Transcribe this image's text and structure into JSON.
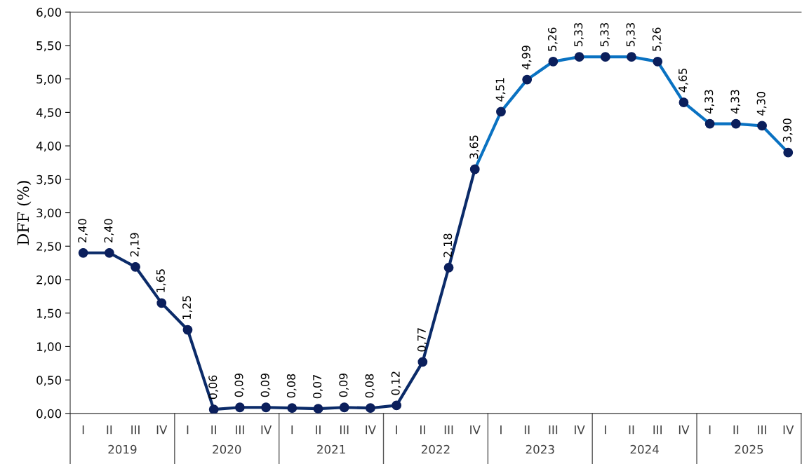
{
  "chart_data": {
    "type": "line",
    "ylabel": "DFF (%)",
    "categories": [
      "I",
      "II",
      "III",
      "IV",
      "I",
      "II",
      "III",
      "IV",
      "I",
      "II",
      "III",
      "IV",
      "I",
      "II",
      "III",
      "IV",
      "I",
      "II",
      "III",
      "IV",
      "I",
      "II",
      "III",
      "IV",
      "I",
      "II",
      "III",
      "IV"
    ],
    "annotations": [
      "2019",
      "2020",
      "2021",
      "2022",
      "2023",
      "2024",
      "2025"
    ],
    "series": [
      {
        "color": "#0b2b69",
        "colors": [
          "#0b1f5c",
          "#0b1f5c",
          "#0b1f5c",
          "#0b1f5c",
          "#0b1f5c",
          "#0b1f5c",
          "#0b1f5c",
          "#0b1f5c",
          "#0b1f5c",
          "#0b1f5c",
          "#0b1f5c",
          "#0b1f5c",
          "#0b1f5c",
          "#0b1f5c",
          "#0b1f5c",
          "#0b1f5c",
          null,
          null,
          null,
          null,
          null,
          null,
          null,
          null,
          null,
          null,
          null,
          null
        ],
        "values": [
          2.4,
          2.4,
          2.19,
          1.65,
          1.25,
          0.06,
          0.09,
          0.09,
          0.08,
          0.07,
          0.09,
          0.08,
          0.12,
          0.77,
          2.18,
          3.65,
          null,
          null,
          null,
          null,
          null,
          null,
          null,
          null,
          null,
          null,
          null,
          null
        ],
        "value_labels": [
          "2,40",
          "2,40",
          "2,19",
          "1,65",
          "1,25",
          "0,06",
          "0,09",
          "0,09",
          "0,08",
          "0,07",
          "0,09",
          "0,08",
          "0,12",
          "0,77",
          "2,18",
          "3,65",
          null,
          null,
          null,
          null,
          null,
          null,
          null,
          null,
          null,
          null,
          null,
          null
        ]
      },
      {
        "color": "#0a72c2",
        "colors": [
          null,
          null,
          null,
          null,
          null,
          null,
          null,
          null,
          null,
          null,
          null,
          null,
          null,
          null,
          null,
          null,
          "#0b1f5c",
          "#0b1f5c",
          "#0b1f5c",
          "#0b1f5c",
          "#0b1f5c",
          "#0b1f5c",
          "#0b1f5c",
          "#0b1f5c",
          "#0b1f5c",
          "#0b1f5c",
          "#0b1f5c",
          "#0b1f5c"
        ],
        "values": [
          null,
          null,
          null,
          null,
          null,
          null,
          null,
          null,
          null,
          null,
          null,
          null,
          null,
          null,
          null,
          3.65,
          4.51,
          4.99,
          5.26,
          5.33,
          5.33,
          5.33,
          5.26,
          4.65,
          4.33,
          4.33,
          4.3,
          3.9
        ],
        "value_labels": [
          null,
          null,
          null,
          null,
          null,
          null,
          null,
          null,
          null,
          null,
          null,
          null,
          null,
          null,
          null,
          null,
          "4,51",
          "4,99",
          "5,26",
          "5,33",
          "5,33",
          "5,33",
          "5,26",
          "4,65",
          "4,33",
          "4,33",
          "4,30",
          "3,90"
        ]
      }
    ],
    "ylim": [
      0,
      6
    ],
    "yticks": [
      {
        "value": 0,
        "label": "0,00"
      },
      {
        "value": 0.5,
        "label": "0,50"
      },
      {
        "value": 1,
        "label": "1,00"
      },
      {
        "value": 1.5,
        "label": "1,50"
      },
      {
        "value": 2,
        "label": "2,00"
      },
      {
        "value": 2.5,
        "label": "2,50"
      },
      {
        "value": 3,
        "label": "3,00"
      },
      {
        "value": 3.5,
        "label": "3,50"
      },
      {
        "value": 4,
        "label": "4,00"
      },
      {
        "value": 4.5,
        "label": "4,50"
      },
      {
        "value": 5,
        "label": "5,00"
      },
      {
        "value": 5.5,
        "label": "5,50"
      },
      {
        "value": 6,
        "label": "6,00"
      }
    ],
    "marker": "circle",
    "line_style": "solid",
    "grid": false
  }
}
